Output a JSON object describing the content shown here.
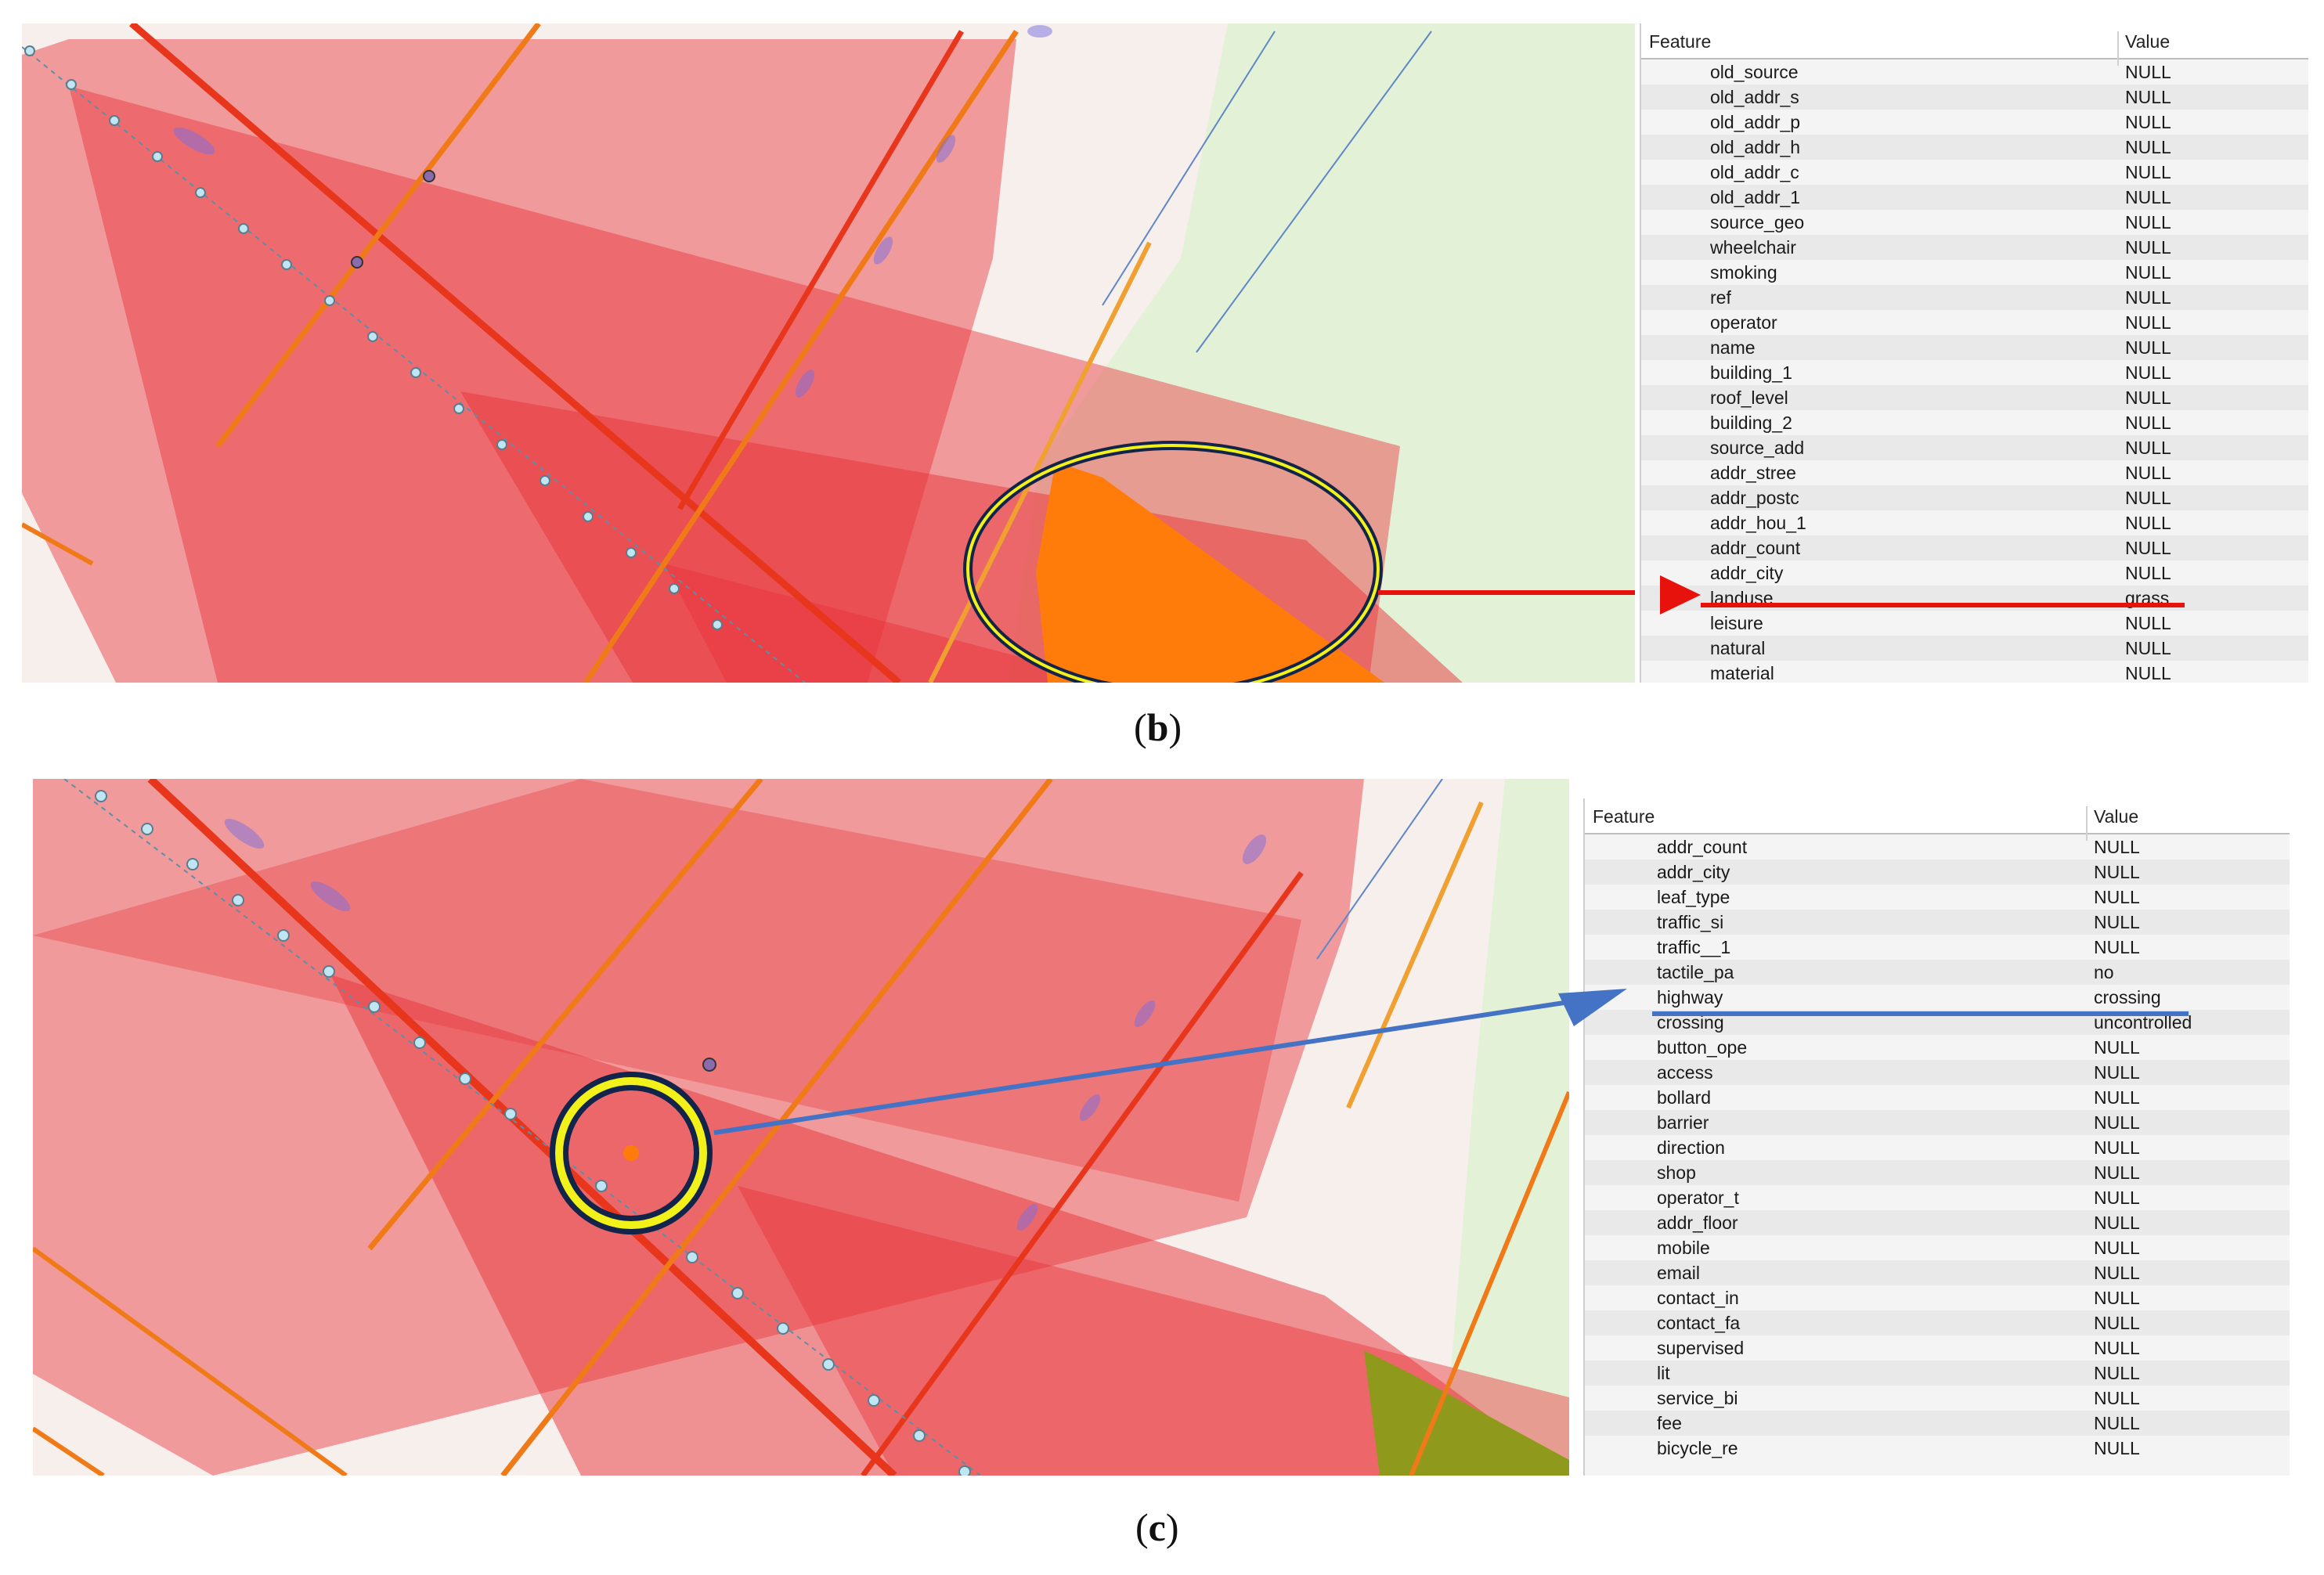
{
  "panel_b": {
    "caption_open": "(",
    "caption_letter": "b",
    "caption_close": ")",
    "table": {
      "header_feature": "Feature",
      "header_value": "Value",
      "rows": [
        {
          "feature": "old_source",
          "value": "NULL"
        },
        {
          "feature": "old_addr_s",
          "value": "NULL"
        },
        {
          "feature": "old_addr_p",
          "value": "NULL"
        },
        {
          "feature": "old_addr_h",
          "value": "NULL"
        },
        {
          "feature": "old_addr_c",
          "value": "NULL"
        },
        {
          "feature": "old_addr_1",
          "value": "NULL"
        },
        {
          "feature": "source_geo",
          "value": "NULL"
        },
        {
          "feature": "wheelchair",
          "value": "NULL"
        },
        {
          "feature": "smoking",
          "value": "NULL"
        },
        {
          "feature": "ref",
          "value": "NULL"
        },
        {
          "feature": "operator",
          "value": "NULL"
        },
        {
          "feature": "name",
          "value": "NULL"
        },
        {
          "feature": "building_1",
          "value": "NULL"
        },
        {
          "feature": "roof_level",
          "value": "NULL"
        },
        {
          "feature": "building_2",
          "value": "NULL"
        },
        {
          "feature": "source_add",
          "value": "NULL"
        },
        {
          "feature": "addr_stree",
          "value": "NULL"
        },
        {
          "feature": "addr_postc",
          "value": "NULL"
        },
        {
          "feature": "addr_hou_1",
          "value": "NULL"
        },
        {
          "feature": "addr_count",
          "value": "NULL"
        },
        {
          "feature": "addr_city",
          "value": "NULL"
        },
        {
          "feature": "landuse",
          "value": "grass"
        },
        {
          "feature": "leisure",
          "value": "NULL"
        },
        {
          "feature": "natural",
          "value": "NULL"
        },
        {
          "feature": "material",
          "value": "NULL"
        }
      ]
    },
    "colors": {
      "highlight_arrow": "#e8120c",
      "selected_polygon": "#ff7b0a"
    }
  },
  "panel_c": {
    "caption_open": "(",
    "caption_letter": "c",
    "caption_close": ")",
    "table": {
      "header_feature": "Feature",
      "header_value": "Value",
      "rows": [
        {
          "feature": "addr_count",
          "value": "NULL"
        },
        {
          "feature": "addr_city",
          "value": "NULL"
        },
        {
          "feature": "leaf_type",
          "value": "NULL"
        },
        {
          "feature": "traffic_si",
          "value": "NULL"
        },
        {
          "feature": "traffic__1",
          "value": "NULL"
        },
        {
          "feature": "tactile_pa",
          "value": "no"
        },
        {
          "feature": "highway",
          "value": "crossing"
        },
        {
          "feature": "crossing",
          "value": "uncontrolled"
        },
        {
          "feature": "button_ope",
          "value": "NULL"
        },
        {
          "feature": "access",
          "value": "NULL"
        },
        {
          "feature": "bollard",
          "value": "NULL"
        },
        {
          "feature": "barrier",
          "value": "NULL"
        },
        {
          "feature": "direction",
          "value": "NULL"
        },
        {
          "feature": "shop",
          "value": "NULL"
        },
        {
          "feature": "operator_t",
          "value": "NULL"
        },
        {
          "feature": "addr_floor",
          "value": "NULL"
        },
        {
          "feature": "mobile",
          "value": "NULL"
        },
        {
          "feature": "email",
          "value": "NULL"
        },
        {
          "feature": "contact_in",
          "value": "NULL"
        },
        {
          "feature": "contact_fa",
          "value": "NULL"
        },
        {
          "feature": "supervised",
          "value": "NULL"
        },
        {
          "feature": "lit",
          "value": "NULL"
        },
        {
          "feature": "service_bi",
          "value": "NULL"
        },
        {
          "feature": "fee",
          "value": "NULL"
        },
        {
          "feature": "bicycle_re",
          "value": "NULL"
        }
      ]
    },
    "colors": {
      "highlight_arrow": "#4472c4",
      "selected_point": "#ff7b0a"
    }
  },
  "map_colors": {
    "building_fill": "#e8343a",
    "road_orange": "#f07a18",
    "road_red": "#e8361c",
    "vertex_light": "#bfe6f2",
    "grass": "#e3f2d7",
    "selection_ring": "#f2f21a",
    "selection_outline": "#13244a"
  }
}
